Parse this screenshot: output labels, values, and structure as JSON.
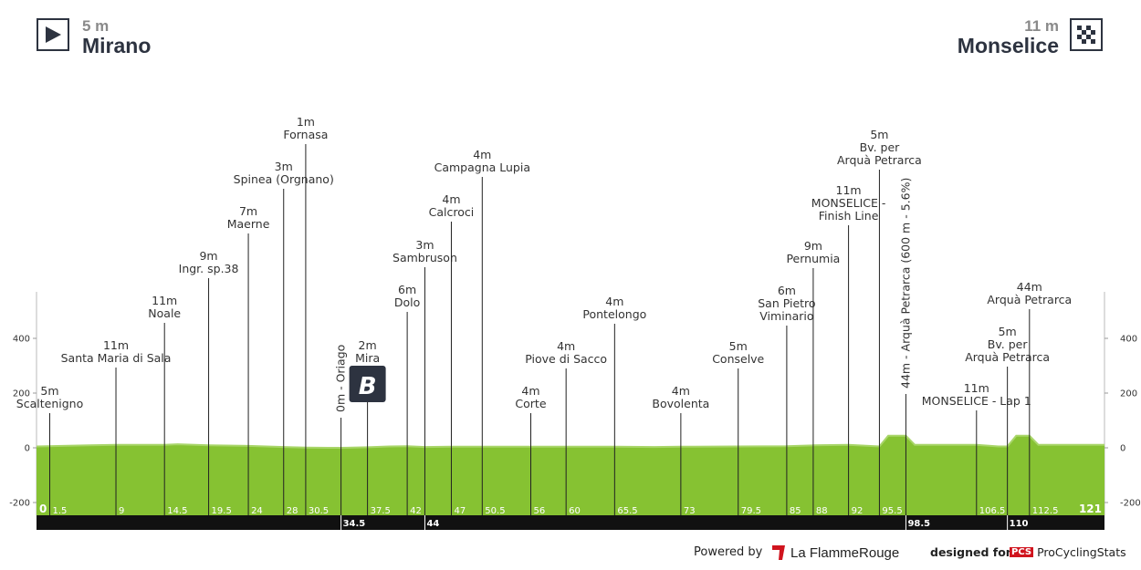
{
  "start": {
    "altitude": "5 m",
    "name": "Mirano",
    "icon": "play-icon"
  },
  "finish": {
    "altitude": "11 m",
    "name": "Monselice",
    "icon": "checkered-flag-icon"
  },
  "chart_data": {
    "type": "area",
    "title": "",
    "xlabel": "",
    "ylabel": "",
    "ylim": [
      -200,
      400
    ],
    "yticks": [
      -200,
      0,
      200,
      400
    ],
    "xlim": [
      0,
      121
    ],
    "km_ticks": [
      "0",
      "1.5",
      "9",
      "14.5",
      "19.5",
      "24",
      "28",
      "30.5",
      "37.5",
      "42",
      "47",
      "50.5",
      "56",
      "60",
      "65.5",
      "73",
      "79.5",
      "85",
      "88",
      "92",
      "95.5",
      "106.5",
      "112.5",
      "121"
    ],
    "black_bar_ticks": [
      "34.5",
      "44",
      "98.5",
      "110"
    ],
    "profile": [
      {
        "km": 0,
        "alt": 5
      },
      {
        "km": 3,
        "alt": 7
      },
      {
        "km": 6,
        "alt": 9
      },
      {
        "km": 9,
        "alt": 11
      },
      {
        "km": 12,
        "alt": 11
      },
      {
        "km": 14.5,
        "alt": 11
      },
      {
        "km": 16,
        "alt": 13
      },
      {
        "km": 19.5,
        "alt": 9
      },
      {
        "km": 24,
        "alt": 7
      },
      {
        "km": 28,
        "alt": 3
      },
      {
        "km": 30.5,
        "alt": 1
      },
      {
        "km": 33,
        "alt": 0
      },
      {
        "km": 34.5,
        "alt": 0
      },
      {
        "km": 37.5,
        "alt": 2
      },
      {
        "km": 40,
        "alt": 5
      },
      {
        "km": 42,
        "alt": 6
      },
      {
        "km": 44,
        "alt": 3
      },
      {
        "km": 47,
        "alt": 4
      },
      {
        "km": 50.5,
        "alt": 4
      },
      {
        "km": 56,
        "alt": 4
      },
      {
        "km": 60,
        "alt": 4
      },
      {
        "km": 65.5,
        "alt": 4
      },
      {
        "km": 70,
        "alt": 3
      },
      {
        "km": 73,
        "alt": 4
      },
      {
        "km": 79.5,
        "alt": 5
      },
      {
        "km": 85,
        "alt": 6
      },
      {
        "km": 88,
        "alt": 9
      },
      {
        "km": 92,
        "alt": 11
      },
      {
        "km": 95.5,
        "alt": 5
      },
      {
        "km": 96.5,
        "alt": 44
      },
      {
        "km": 98.5,
        "alt": 44
      },
      {
        "km": 99.5,
        "alt": 11
      },
      {
        "km": 103,
        "alt": 11
      },
      {
        "km": 106.5,
        "alt": 11
      },
      {
        "km": 109,
        "alt": 5
      },
      {
        "km": 110,
        "alt": 5
      },
      {
        "km": 111,
        "alt": 44
      },
      {
        "km": 112.5,
        "alt": 44
      },
      {
        "km": 113.5,
        "alt": 11
      },
      {
        "km": 117,
        "alt": 11
      },
      {
        "km": 121,
        "alt": 11
      }
    ],
    "waypoints": [
      {
        "km": 1.5,
        "alt": "5m",
        "name": [
          "Scaltenigno"
        ]
      },
      {
        "km": 9,
        "alt": "11m",
        "name": [
          "Santa Maria di Sala"
        ]
      },
      {
        "km": 14.5,
        "alt": "11m",
        "name": [
          "Noale"
        ]
      },
      {
        "km": 19.5,
        "alt": "9m",
        "name": [
          "Ingr. sp.38"
        ]
      },
      {
        "km": 24,
        "alt": "7m",
        "name": [
          "Maerne"
        ]
      },
      {
        "km": 28,
        "alt": "3m",
        "name": [
          "Spinea (Orgnano)"
        ]
      },
      {
        "km": 30.5,
        "alt": "1m",
        "name": [
          "Fornasa"
        ]
      },
      {
        "km": 37.5,
        "alt": "2m",
        "name": [
          "Mira"
        ]
      },
      {
        "km": 42,
        "alt": "6m",
        "name": [
          "Dolo"
        ]
      },
      {
        "km": 44,
        "alt": "3m",
        "name": [
          "Sambruson"
        ]
      },
      {
        "km": 47,
        "alt": "4m",
        "name": [
          "Calcroci"
        ]
      },
      {
        "km": 50.5,
        "alt": "4m",
        "name": [
          "Campagna Lupia"
        ]
      },
      {
        "km": 56,
        "alt": "4m",
        "name": [
          "Corte"
        ]
      },
      {
        "km": 60,
        "alt": "4m",
        "name": [
          "Piove di Sacco"
        ]
      },
      {
        "km": 65.5,
        "alt": "4m",
        "name": [
          "Pontelongo"
        ]
      },
      {
        "km": 73,
        "alt": "4m",
        "name": [
          "Bovolenta"
        ]
      },
      {
        "km": 79.5,
        "alt": "5m",
        "name": [
          "Conselve"
        ]
      },
      {
        "km": 85,
        "alt": "6m",
        "name": [
          "San Pietro",
          "Viminario"
        ]
      },
      {
        "km": 88,
        "alt": "9m",
        "name": [
          "Pernumia"
        ]
      },
      {
        "km": 92,
        "alt": "11m",
        "name": [
          "MONSELICE -",
          "Finish Line"
        ]
      },
      {
        "km": 95.5,
        "alt": "5m",
        "name": [
          "Bv. per",
          "Arquà Petrarca"
        ]
      },
      {
        "km": 106.5,
        "alt": "11m",
        "name": [
          "MONSELICE - Lap 1"
        ]
      },
      {
        "km": 110,
        "alt": "5m",
        "name": [
          "Bv. per",
          "Arquà Petrarca"
        ]
      },
      {
        "km": 112.5,
        "alt": "44m",
        "name": [
          "Arquà Petrarca"
        ]
      }
    ],
    "vertical_labels": [
      {
        "km": 34.5,
        "text": "0m - Oriago"
      },
      {
        "km": 98.5,
        "text": "44m - Arquà Petrarca (600 m - 5.6%)"
      }
    ],
    "badge": {
      "km": 37.5,
      "text": "B"
    }
  },
  "footer": {
    "powered_by": "Powered by",
    "brand": "La FlammeRouge",
    "designed_for": "designed for",
    "pcs_logo": "PCS",
    "pcs_name": "ProCyclingStats"
  }
}
